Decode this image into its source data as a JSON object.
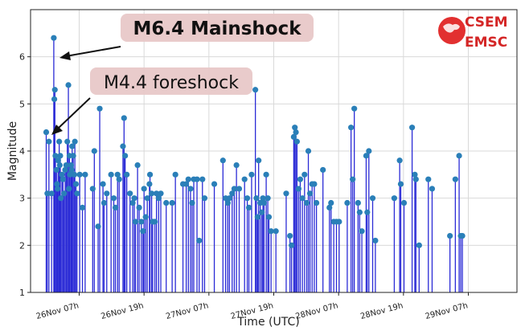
{
  "chart_data": {
    "type": "stem",
    "title": "",
    "xlabel": "Time (UTC)",
    "ylabel": "Magnitude",
    "xlim_hours": [
      -2,
      88
    ],
    "ylim": [
      1,
      7
    ],
    "yticks": [
      1,
      2,
      3,
      4,
      5,
      6
    ],
    "xticks": [
      {
        "hours": 7,
        "label": "26Nov 07h"
      },
      {
        "hours": 19,
        "label": "26Nov 19h"
      },
      {
        "hours": 31,
        "label": "27Nov 07h"
      },
      {
        "hours": 43,
        "label": "27Nov 19h"
      },
      {
        "hours": 55,
        "label": "28Nov 07h"
      },
      {
        "hours": 67,
        "label": "28Nov 19h"
      },
      {
        "hours": 79,
        "label": "29Nov 07h"
      }
    ],
    "grid": true,
    "color": "#2b2bd6",
    "marker_color": "#2a7fb8",
    "annotations": [
      {
        "text": "M6.4 Mainshock",
        "target_hours": 2.3,
        "target_mag": 6.4
      },
      {
        "text": "M4.4 foreshock",
        "target_hours": 1.0,
        "target_mag": 4.1
      }
    ],
    "events": [
      [
        0.9,
        4.4
      ],
      [
        1.1,
        3.1
      ],
      [
        1.4,
        4.2
      ],
      [
        1.9,
        3.1
      ],
      [
        2.3,
        6.4
      ],
      [
        2.4,
        5.1
      ],
      [
        2.5,
        5.3
      ],
      [
        2.6,
        3.9
      ],
      [
        2.8,
        3.6
      ],
      [
        2.9,
        3.3
      ],
      [
        3.0,
        3.2
      ],
      [
        3.1,
        3.8
      ],
      [
        3.3,
        4.2
      ],
      [
        3.4,
        3.7
      ],
      [
        3.5,
        3.9
      ],
      [
        3.6,
        3.0
      ],
      [
        3.8,
        3.5
      ],
      [
        4.0,
        3.4
      ],
      [
        4.2,
        3.1
      ],
      [
        4.4,
        3.6
      ],
      [
        4.6,
        3.7
      ],
      [
        4.8,
        4.2
      ],
      [
        5.0,
        5.4
      ],
      [
        5.1,
        3.2
      ],
      [
        5.2,
        3.9
      ],
      [
        5.3,
        3.5
      ],
      [
        5.5,
        3.7
      ],
      [
        5.6,
        3.6
      ],
      [
        5.7,
        4.1
      ],
      [
        5.9,
        3.9
      ],
      [
        6.1,
        3.5
      ],
      [
        6.2,
        4.2
      ],
      [
        6.4,
        3.3
      ],
      [
        6.6,
        3.1
      ],
      [
        7.1,
        3.5
      ],
      [
        7.6,
        2.8
      ],
      [
        8.1,
        3.5
      ],
      [
        9.5,
        3.2
      ],
      [
        9.8,
        4.0
      ],
      [
        10.5,
        2.4
      ],
      [
        10.8,
        4.9
      ],
      [
        11.4,
        3.3
      ],
      [
        11.6,
        2.9
      ],
      [
        12.1,
        3.1
      ],
      [
        12.9,
        3.5
      ],
      [
        13.4,
        3.0
      ],
      [
        13.7,
        2.8
      ],
      [
        14.1,
        3.5
      ],
      [
        14.4,
        3.4
      ],
      [
        15.1,
        4.1
      ],
      [
        15.3,
        4.7
      ],
      [
        15.5,
        3.9
      ],
      [
        15.8,
        3.5
      ],
      [
        16.4,
        3.1
      ],
      [
        16.9,
        2.9
      ],
      [
        17.2,
        3.0
      ],
      [
        17.4,
        2.5
      ],
      [
        17.8,
        3.7
      ],
      [
        18.1,
        2.8
      ],
      [
        18.5,
        2.5
      ],
      [
        18.8,
        2.3
      ],
      [
        19.0,
        3.2
      ],
      [
        19.3,
        2.6
      ],
      [
        19.6,
        3.0
      ],
      [
        20.0,
        3.3
      ],
      [
        20.1,
        3.5
      ],
      [
        20.4,
        3.1
      ],
      [
        20.6,
        2.5
      ],
      [
        21.0,
        2.5
      ],
      [
        21.3,
        3.1
      ],
      [
        21.7,
        3.0
      ],
      [
        22.1,
        3.1
      ],
      [
        23.1,
        2.9
      ],
      [
        24.2,
        2.9
      ],
      [
        24.8,
        3.5
      ],
      [
        26.2,
        3.3
      ],
      [
        26.8,
        3.3
      ],
      [
        27.2,
        3.4
      ],
      [
        27.6,
        3.2
      ],
      [
        27.9,
        2.9
      ],
      [
        28.2,
        3.4
      ],
      [
        28.8,
        3.4
      ],
      [
        29.2,
        2.1
      ],
      [
        29.8,
        3.4
      ],
      [
        30.2,
        3.0
      ],
      [
        32.0,
        3.3
      ],
      [
        33.6,
        3.8
      ],
      [
        34.1,
        3.0
      ],
      [
        34.5,
        2.9
      ],
      [
        34.8,
        3.0
      ],
      [
        35.3,
        3.1
      ],
      [
        35.7,
        3.2
      ],
      [
        36.1,
        3.7
      ],
      [
        36.6,
        3.2
      ],
      [
        37.6,
        3.4
      ],
      [
        38.1,
        3.0
      ],
      [
        38.4,
        2.8
      ],
      [
        38.9,
        3.5
      ],
      [
        39.6,
        5.3
      ],
      [
        39.8,
        3.0
      ],
      [
        40.0,
        2.6
      ],
      [
        40.2,
        3.8
      ],
      [
        40.5,
        2.9
      ],
      [
        40.8,
        2.7
      ],
      [
        41.0,
        3.0
      ],
      [
        41.2,
        2.9
      ],
      [
        41.6,
        3.5
      ],
      [
        41.9,
        3.0
      ],
      [
        42.1,
        2.6
      ],
      [
        42.5,
        2.3
      ],
      [
        43.4,
        2.3
      ],
      [
        45.3,
        3.1
      ],
      [
        46.0,
        2.2
      ],
      [
        46.3,
        2.0
      ],
      [
        46.7,
        4.3
      ],
      [
        46.9,
        4.5
      ],
      [
        47.1,
        4.4
      ],
      [
        47.3,
        4.2
      ],
      [
        47.6,
        3.2
      ],
      [
        47.9,
        3.4
      ],
      [
        48.3,
        3.0
      ],
      [
        48.7,
        3.5
      ],
      [
        49.1,
        2.9
      ],
      [
        49.4,
        4.0
      ],
      [
        49.7,
        3.1
      ],
      [
        50.1,
        3.3
      ],
      [
        50.5,
        3.3
      ],
      [
        50.9,
        2.9
      ],
      [
        52.1,
        3.6
      ],
      [
        53.3,
        2.8
      ],
      [
        53.6,
        2.9
      ],
      [
        54.1,
        2.5
      ],
      [
        54.6,
        2.5
      ],
      [
        55.1,
        2.5
      ],
      [
        56.6,
        2.9
      ],
      [
        57.3,
        4.5
      ],
      [
        57.6,
        3.4
      ],
      [
        57.9,
        4.9
      ],
      [
        58.6,
        2.9
      ],
      [
        58.9,
        2.7
      ],
      [
        59.3,
        2.3
      ],
      [
        60.1,
        3.9
      ],
      [
        60.3,
        2.7
      ],
      [
        60.6,
        4.0
      ],
      [
        61.3,
        3.0
      ],
      [
        61.8,
        2.1
      ],
      [
        65.3,
        3.0
      ],
      [
        66.3,
        3.8
      ],
      [
        66.5,
        3.3
      ],
      [
        67.1,
        2.9
      ],
      [
        68.6,
        4.5
      ],
      [
        69.1,
        3.5
      ],
      [
        69.3,
        3.4
      ],
      [
        69.9,
        2.0
      ],
      [
        71.6,
        3.4
      ],
      [
        72.3,
        3.2
      ],
      [
        75.6,
        2.2
      ],
      [
        76.6,
        3.4
      ],
      [
        77.3,
        3.9
      ],
      [
        77.6,
        2.2
      ],
      [
        77.9,
        2.2
      ]
    ]
  }
}
